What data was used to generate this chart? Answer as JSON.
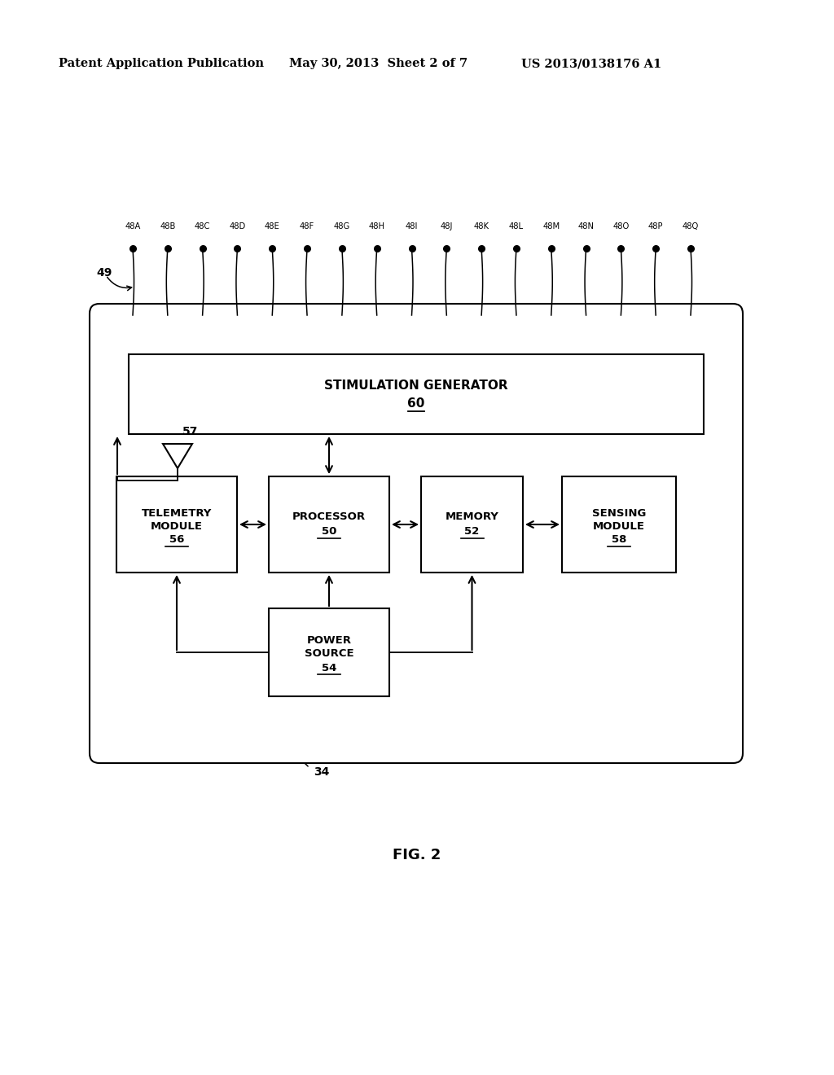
{
  "bg_color": "#ffffff",
  "header_left": "Patent Application Publication",
  "header_mid": "May 30, 2013  Sheet 2 of 7",
  "header_right": "US 2013/0138176 A1",
  "fig_caption": "FIG. 2",
  "electrode_labels": [
    "48A",
    "48B",
    "48C",
    "48D",
    "48E",
    "48F",
    "48G",
    "48H",
    "48I",
    "48J",
    "48K",
    "48L",
    "48M",
    "48N",
    "48O",
    "48P",
    "48Q"
  ],
  "label_49": "49",
  "label_57": "57",
  "label_34": "34",
  "stim_gen_label": "STIMULATION GENERATOR",
  "stim_gen_num": "60",
  "telemetry_label": "TELEMETRY\nMODULE",
  "telemetry_num": "56",
  "processor_label": "PROCESSOR",
  "processor_num": "50",
  "memory_label": "MEMORY",
  "memory_num": "52",
  "sensing_label": "SENSING\nMODULE",
  "sensing_num": "58",
  "power_label": "POWER\nSOURCE",
  "power_num": "54"
}
